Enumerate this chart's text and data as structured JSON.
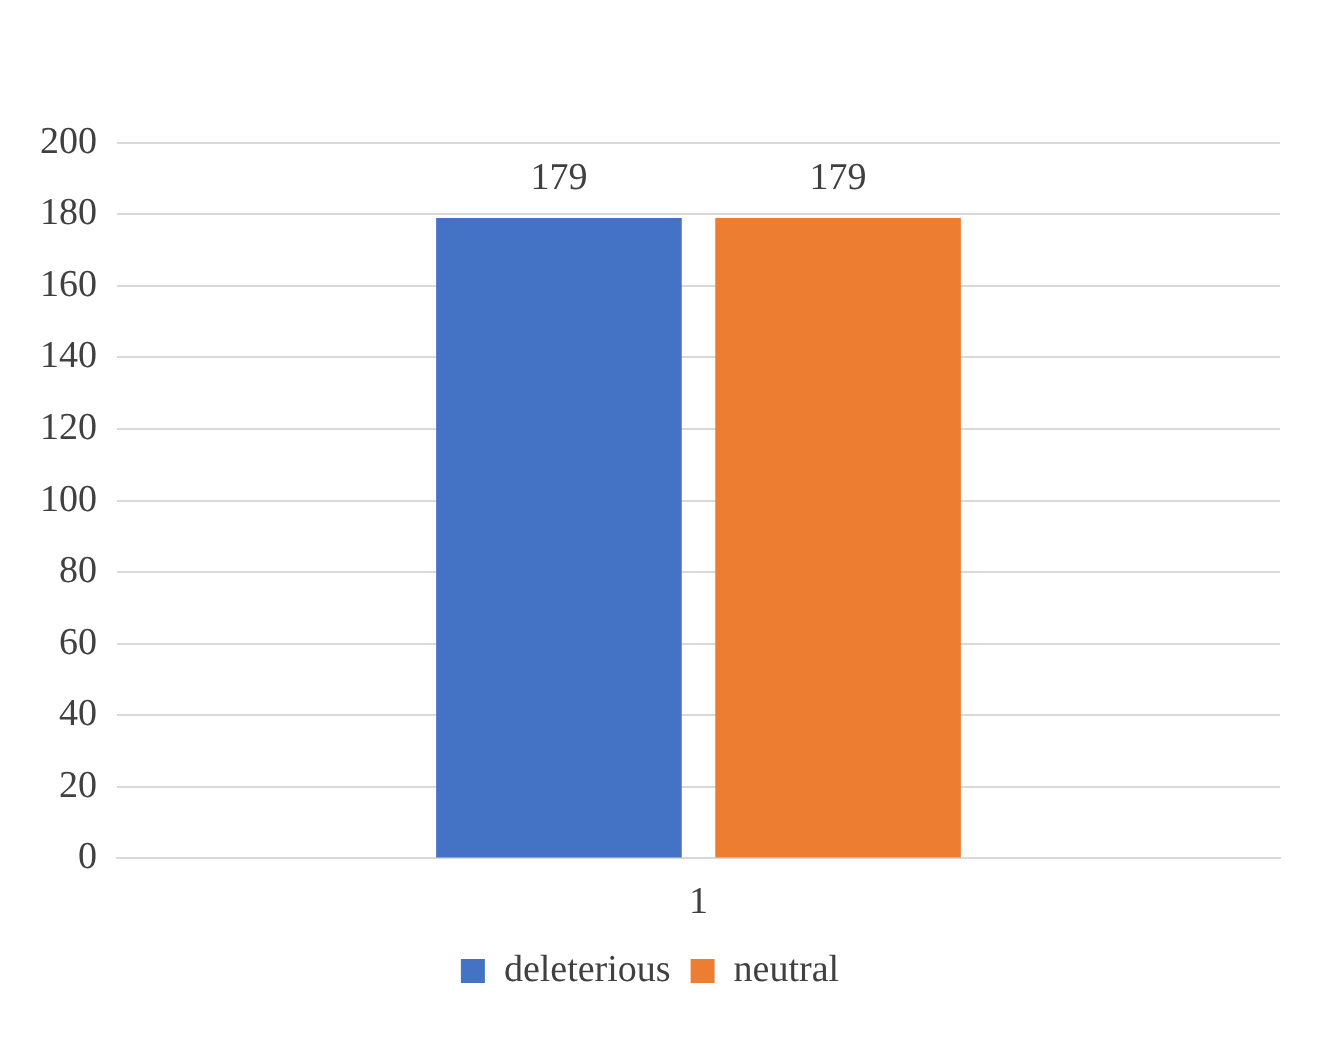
{
  "chart_data": {
    "type": "bar",
    "categories": [
      "1"
    ],
    "series": [
      {
        "name": "deleterious",
        "color": "#4472c4",
        "values": [
          179
        ]
      },
      {
        "name": "neutral",
        "color": "#ed7d31",
        "values": [
          179
        ]
      }
    ],
    "ylim": [
      0,
      200
    ],
    "yticks": [
      0,
      20,
      40,
      60,
      80,
      100,
      120,
      140,
      160,
      180,
      200
    ],
    "grid": "y",
    "legend": "bottom",
    "data_labels": true
  }
}
